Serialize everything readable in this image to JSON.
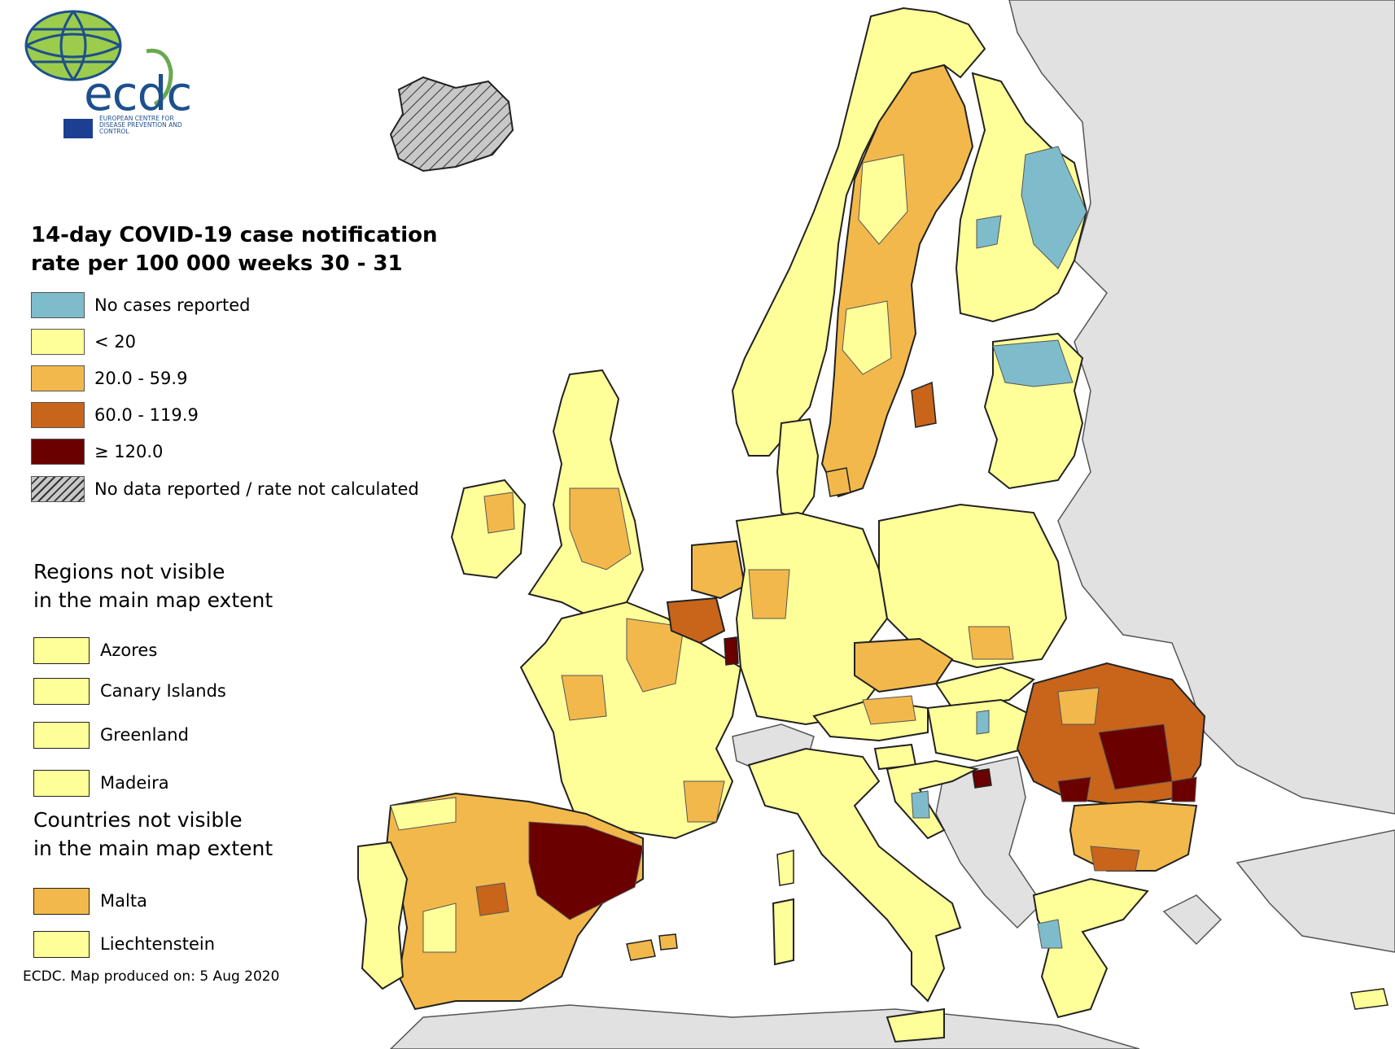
{
  "logo": {
    "wordmark": "ecdc",
    "subtitle": "EUROPEAN CENTRE FOR DISEASE PREVENTION AND CONTROL"
  },
  "legend": {
    "title_line1": "14-day COVID-19 case notification",
    "title_line2": "rate per 100 000 weeks 30 - 31",
    "classes": [
      {
        "label": "No cases reported",
        "color": "#7fbccb"
      },
      {
        "label": "< 20",
        "color": "#ffff99"
      },
      {
        "label": "20.0 - 59.9",
        "color": "#f2b84b"
      },
      {
        "label": "60.0 - 119.9",
        "color": "#c8651b"
      },
      {
        "label": "≥ 120.0",
        "color": "#6b0000"
      },
      {
        "label": "No data reported / rate not calculated",
        "color": "#c8c8c8"
      }
    ]
  },
  "regions_not_visible": {
    "title_line1": "Regions not visible",
    "title_line2": "in the main map extent",
    "items": [
      {
        "name": "Azores",
        "class": "< 20"
      },
      {
        "name": "Canary Islands",
        "class": "< 20"
      },
      {
        "name": "Greenland",
        "class": "< 20"
      },
      {
        "name": "Madeira",
        "class": "< 20"
      }
    ]
  },
  "countries_not_visible": {
    "title_line1": "Countries not visible",
    "title_line2": "in the main map extent",
    "items": [
      {
        "name": "Malta",
        "class": "20.0 - 59.9"
      },
      {
        "name": "Liechtenstein",
        "class": "< 20"
      }
    ]
  },
  "footer": "ECDC. Map produced on: 5 Aug 2020",
  "colors": {
    "sea": "#ffffff",
    "non_eu": "#e1e1e1",
    "border": "#333333"
  }
}
